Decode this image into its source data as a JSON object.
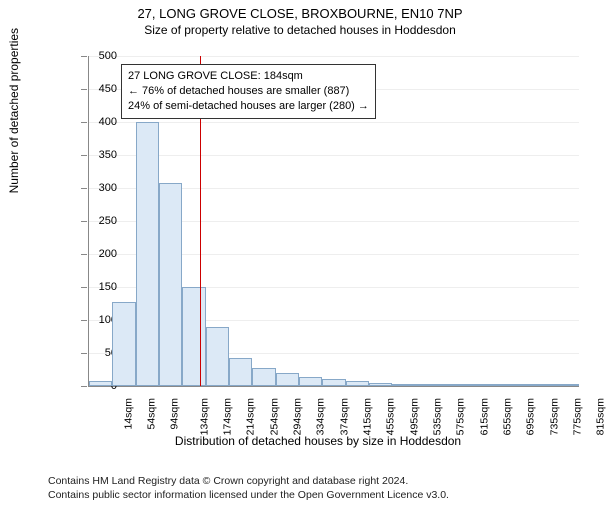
{
  "title": "27, LONG GROVE CLOSE, BROXBOURNE, EN10 7NP",
  "subtitle": "Size of property relative to detached houses in Hoddesdon",
  "chart": {
    "type": "histogram",
    "ylabel": "Number of detached properties",
    "xlabel": "Distribution of detached houses by size in Hoddesdon",
    "ymax": 500,
    "ymin": 0,
    "ytick_step": 50,
    "xstep": 40,
    "xstart": 14,
    "bar_fill": "#dce9f6",
    "bar_border": "#87a8c8",
    "grid_color": "#eeeeee",
    "axis_color": "#888888",
    "background_color": "#ffffff",
    "marker_value": 184,
    "marker_color": "#cc0000",
    "x_labels": [
      "14sqm",
      "54sqm",
      "94sqm",
      "134sqm",
      "174sqm",
      "214sqm",
      "254sqm",
      "294sqm",
      "334sqm",
      "374sqm",
      "415sqm",
      "455sqm",
      "495sqm",
      "535sqm",
      "575sqm",
      "615sqm",
      "655sqm",
      "695sqm",
      "735sqm",
      "775sqm",
      "815sqm"
    ],
    "values": [
      8,
      128,
      400,
      308,
      150,
      90,
      42,
      28,
      20,
      14,
      10,
      7,
      4,
      3,
      2,
      2,
      1,
      1,
      1,
      1,
      1
    ],
    "annotation": {
      "line1": "27 LONG GROVE CLOSE: 184sqm",
      "line2": "← 76% of detached houses are smaller (887)",
      "line3": "24% of semi-detached houses are larger (280) →"
    }
  },
  "footer": {
    "line1": "Contains HM Land Registry data © Crown copyright and database right 2024.",
    "line2": "Contains public sector information licensed under the Open Government Licence v3.0."
  }
}
